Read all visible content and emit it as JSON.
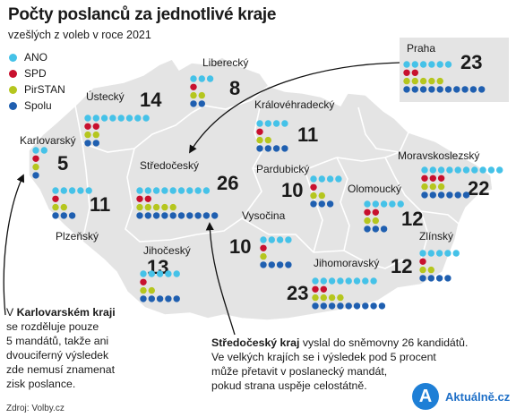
{
  "header": {
    "title": "Počty poslanců za jednotlivé kraje",
    "subtitle": "vzešlých z voleb v roce 2021"
  },
  "legend": [
    {
      "label": "ANO",
      "color": "#45c2e8"
    },
    {
      "label": "SPD",
      "color": "#c8102e"
    },
    {
      "label": "PirSTAN",
      "color": "#b5c61e"
    },
    {
      "label": "Spolu",
      "color": "#1f5fb0"
    }
  ],
  "chart_data": {
    "type": "map",
    "series_names": [
      "ANO",
      "SPD",
      "PirSTAN",
      "Spolu"
    ],
    "regions": [
      {
        "name": "Praha",
        "total": 23,
        "ANO": 6,
        "SPD": 2,
        "PirSTAN": 5,
        "Spolu": 10
      },
      {
        "name": "Liberecký",
        "total": 8,
        "ANO": 3,
        "SPD": 1,
        "PirSTAN": 2,
        "Spolu": 2
      },
      {
        "name": "Ústecký",
        "total": 14,
        "ANO": 8,
        "SPD": 2,
        "PirSTAN": 2,
        "Spolu": 2
      },
      {
        "name": "Karlovarský",
        "total": 5,
        "ANO": 2,
        "SPD": 1,
        "PirSTAN": 1,
        "Spolu": 1
      },
      {
        "name": "Královéhradecký",
        "total": 11,
        "ANO": 4,
        "SPD": 1,
        "PirSTAN": 2,
        "Spolu": 4
      },
      {
        "name": "Středočeský",
        "total": 26,
        "ANO": 9,
        "SPD": 2,
        "PirSTAN": 5,
        "Spolu": 10
      },
      {
        "name": "Plzeňský",
        "total": 11,
        "ANO": 5,
        "SPD": 1,
        "PirSTAN": 2,
        "Spolu": 3
      },
      {
        "name": "Pardubický",
        "total": 10,
        "ANO": 4,
        "SPD": 1,
        "PirSTAN": 2,
        "Spolu": 3
      },
      {
        "name": "Vysočina",
        "total": 10,
        "ANO": 4,
        "SPD": 1,
        "PirSTAN": 1,
        "Spolu": 4
      },
      {
        "name": "Jihočeský",
        "total": 13,
        "ANO": 5,
        "SPD": 1,
        "PirSTAN": 2,
        "Spolu": 5
      },
      {
        "name": "Jihomoravský",
        "total": 23,
        "ANO": 8,
        "SPD": 2,
        "PirSTAN": 4,
        "Spolu": 9
      },
      {
        "name": "Olomoucký",
        "total": 12,
        "ANO": 5,
        "SPD": 2,
        "PirSTAN": 2,
        "Spolu": 3
      },
      {
        "name": "Moravskoslezský",
        "total": 22,
        "ANO": 10,
        "SPD": 3,
        "PirSTAN": 3,
        "Spolu": 6
      },
      {
        "name": "Zlínský",
        "total": 12,
        "ANO": 5,
        "SPD": 1,
        "PirSTAN": 2,
        "Spolu": 4
      }
    ]
  },
  "notes": {
    "karlovarsky": {
      "l1a": "V ",
      "l1b": "Karlovarském kraji",
      "l2": "se rozděluje pouze",
      "l3": "5 mandátů, takže ani",
      "l4": "dvouciferný výsledek",
      "l5": "zde nemusí znamenat",
      "l6": "zisk poslance."
    },
    "stredocesky": {
      "l1a": "Středočeský kraj",
      "l1b": " vyslal do sněmovny 26 kandidátů.",
      "l2": "Ve velkých krajích se i výsledek pod 5 procent",
      "l3": "může přetavit v poslanecký mandát,",
      "l4": "pokud strana uspěje celostátně."
    }
  },
  "source": "Zdroj: Volby.cz",
  "logo": {
    "letter": "A",
    "text": "Aktuálně.cz"
  }
}
